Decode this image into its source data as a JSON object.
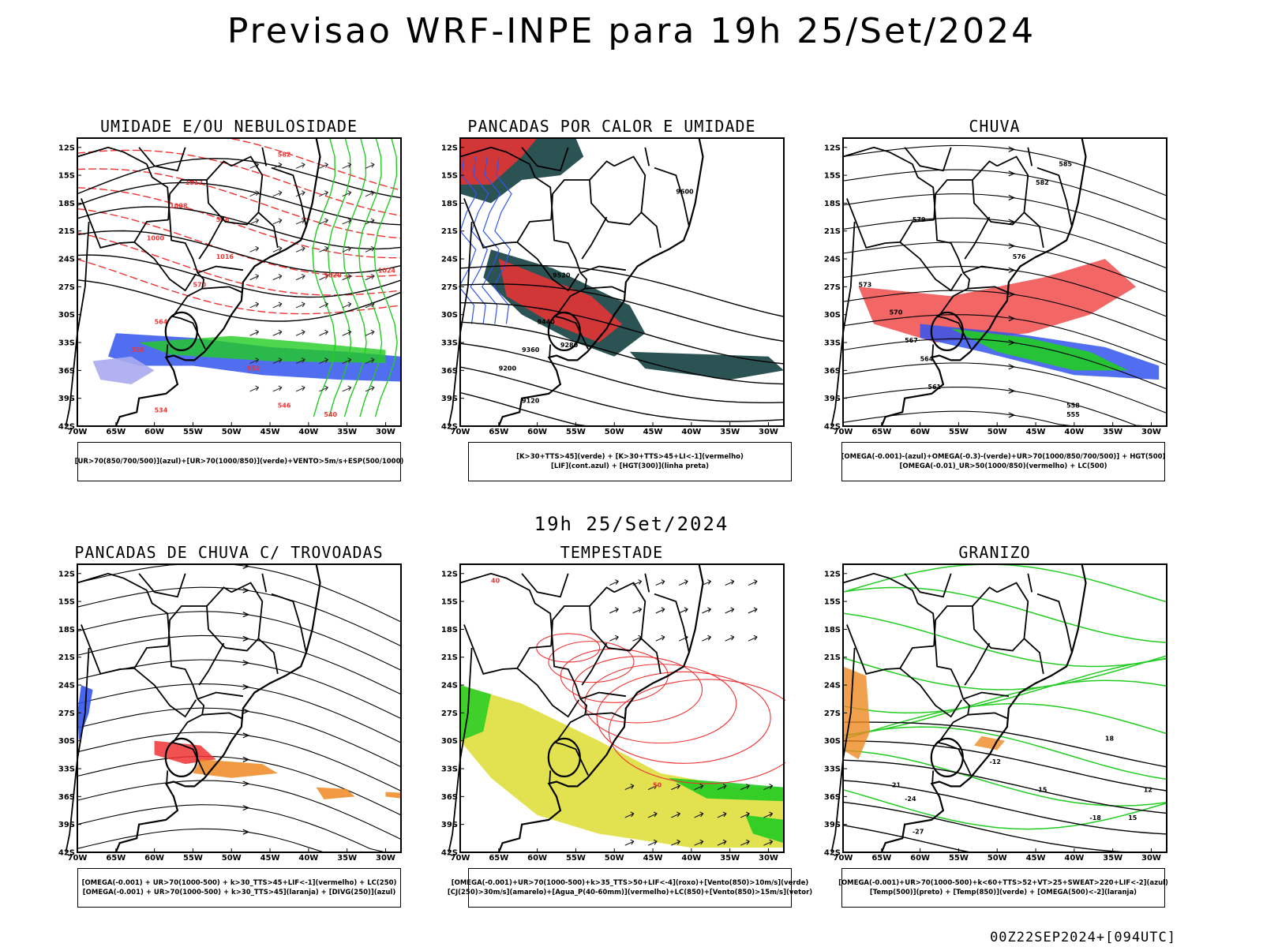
{
  "header": {
    "title": "Previsao WRF-INPE  para 19h 25/Set/2024"
  },
  "middle": {
    "subtitle": "19h 25/Set/2024"
  },
  "footer": {
    "run": "00Z22SEP2024+[094UTC]"
  },
  "axes": {
    "lat_labels": [
      "12S",
      "15S",
      "18S",
      "21S",
      "24S",
      "27S",
      "30S",
      "33S",
      "36S",
      "39S",
      "42S"
    ],
    "lon_labels": [
      "70W",
      "65W",
      "60W",
      "55W",
      "50W",
      "45W",
      "40W",
      "35W",
      "30W"
    ]
  },
  "colors": {
    "blue": "#3355ee",
    "lightblue": "#aaaaee",
    "green": "#22cc22",
    "red": "#ee3333",
    "orange": "#ee8822",
    "yellow": "#dddd33",
    "darkteal": "#204a4a",
    "black": "#000000"
  },
  "panels": [
    {
      "id": "umidade",
      "title": "UMIDADE E/OU NEBULOSIDADE",
      "legend": [
        "[UR>70(850/700/500)](azul)+[UR>70(1000/850)](verde)+VENTO>5m/s+ESP(500/1000)"
      ],
      "contour_labels": [
        "1012",
        "1008",
        "1000",
        "1016",
        "1020",
        "1024",
        "582",
        "576",
        "570",
        "564",
        "558",
        "552",
        "546",
        "540",
        "534"
      ]
    },
    {
      "id": "pancadas",
      "title": "PANCADAS POR CALOR E UMIDADE",
      "legend": [
        "[K>30+TTS>45](verde) + [K>30+TTS>45+LI<-1](vermelho)",
        "[LIF](cont.azul) + [HGT(300)](linha preta)"
      ],
      "contour_labels": [
        "9600",
        "9520",
        "9440",
        "9360",
        "9280",
        "9200",
        "9120"
      ]
    },
    {
      "id": "chuva",
      "title": "CHUVA",
      "legend": [
        "[OMEGA(-0.001)-(azul)+OMEGA(-0.3)-(verde)+UR>70(1000/850/700/500)] + HGT(500)",
        "[OMEGA(-0.01)_UR>50(1000/850)(vermelho) + LC(500)"
      ],
      "contour_labels": [
        "582",
        "579",
        "576",
        "573",
        "570",
        "567",
        "564",
        "561",
        "558",
        "555",
        "585"
      ]
    },
    {
      "id": "trovoadas",
      "title": "PANCADAS DE CHUVA C/ TROVOADAS",
      "legend": [
        "[OMEGA(-0.001) + UR>70(1000-500) + k>30_TTS>45+LIF<-1](vermelho) + LC(250)",
        "[OMEGA(-0.001) + UR>70(1000-500) + k>30_TTS>45](laranja) + [DIVG(250)](azul)"
      ],
      "contour_labels": []
    },
    {
      "id": "tempestade",
      "title": "TEMPESTADE",
      "legend": [
        "[OMEGA(-0.001)+UR>70(1000-500)+k>35_TTS>50+LIF<-4](roxo)+[Vento(850)>10m/s](verde)",
        "[CJ(250)>30m/s](amarelo)+[Agua_P(40-60mm)](vermelho)+LC(850)+[Vento(850)>15m/s](vetor)"
      ],
      "contour_labels": [
        "40",
        "50"
      ]
    },
    {
      "id": "granizo",
      "title": "GRANIZO",
      "legend": [
        "[OMEGA(-0.001)+UR>70(1000-500)+k<60+TTS>52+VT>25+SWEAT>220+LIF<-2](azul)",
        "[Temp(500)](preto) + [Temp(850)](verde) + [OMEGA(500)<-2](laranja)"
      ],
      "contour_labels": [
        "-12",
        "-15",
        "-18",
        "-21",
        "-24",
        "-27",
        "12",
        "15",
        "18"
      ]
    }
  ]
}
